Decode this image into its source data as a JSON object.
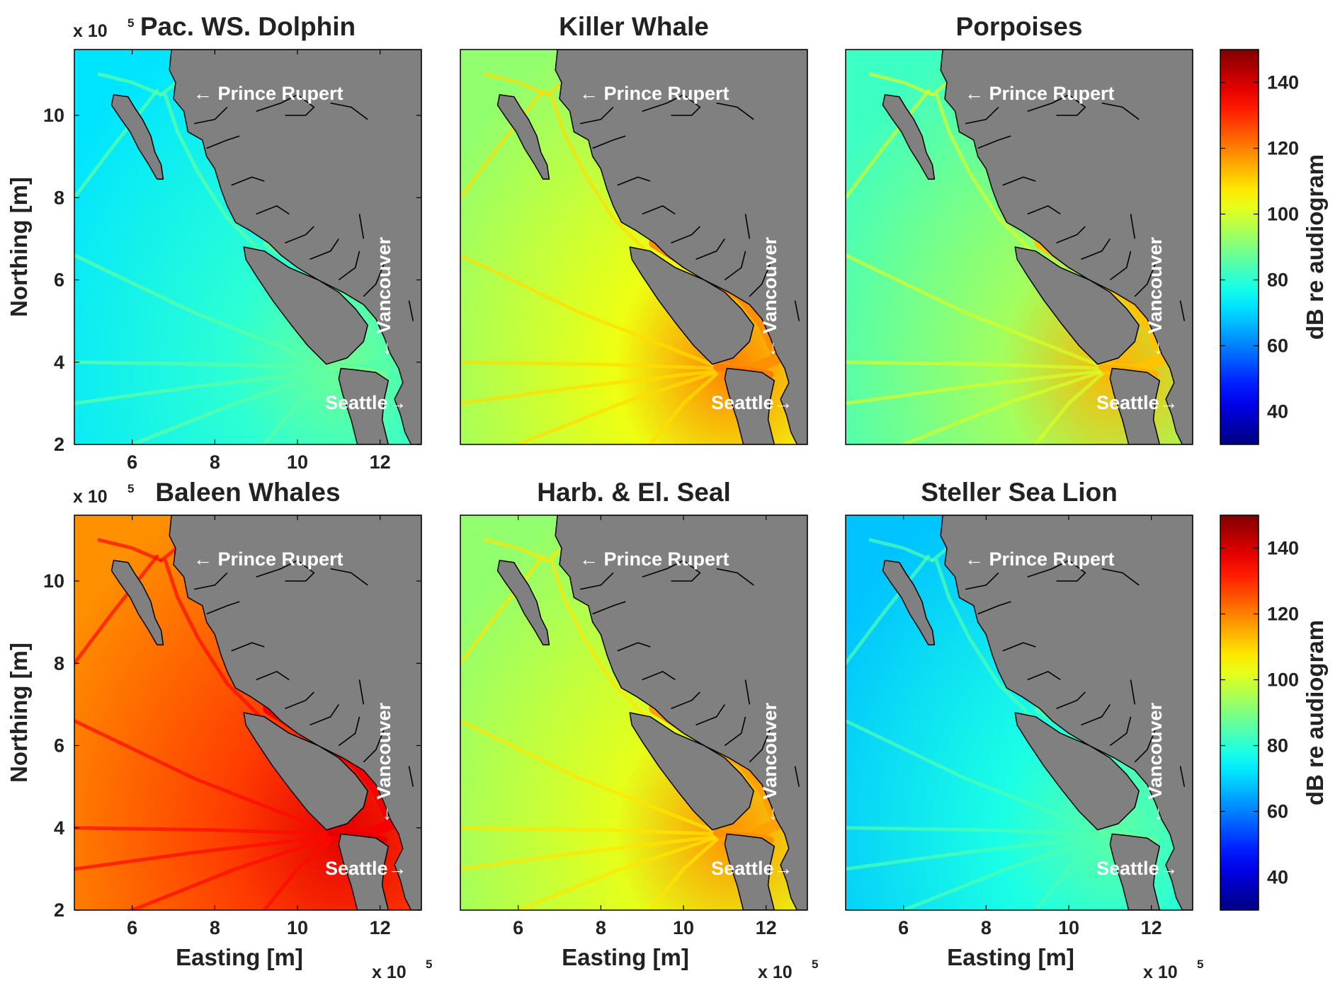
{
  "figure": {
    "colorbar": {
      "label": "dB re audiogram",
      "ticks": [
        40,
        60,
        80,
        100,
        120,
        140
      ],
      "range": [
        30,
        150
      ],
      "colormap": "jet"
    },
    "axis_labels": {
      "x": "Easting [m]",
      "y": "Northing [m]",
      "x_multiplier": "x 10",
      "y_multiplier": "x 10",
      "exponent": "5"
    },
    "annotations": {
      "prince_rupert": "← Prince Rupert",
      "vancouver": "← Vancouver",
      "seattle": "Seattle→"
    },
    "colors": {
      "land": "#808080",
      "coastline": "#000000",
      "label_text": "#ffffff"
    }
  },
  "chart_data": [
    {
      "type": "heatmap",
      "title": "Pac. WS. Dolphin",
      "xlabel": "",
      "ylabel": "Northing [m]",
      "xlim": [
        4.6,
        13.0
      ],
      "ylim": [
        2.0,
        11.6
      ],
      "xticks": [
        "6",
        "8",
        "10",
        "12"
      ],
      "xtick_values": [
        6,
        8,
        10,
        12
      ],
      "yticks": [
        "2",
        "4",
        "6",
        "8",
        "10"
      ],
      "ytick_values": [
        2,
        4,
        6,
        8,
        10
      ],
      "levels_dB": {
        "open_ocean": 72,
        "shipping_lanes": 80,
        "strait": 85,
        "juan_de_fuca": 88
      }
    },
    {
      "type": "heatmap",
      "title": "Killer Whale",
      "xlabel": "",
      "ylabel": "",
      "xlim": [
        4.6,
        13.0
      ],
      "ylim": [
        2.0,
        11.6
      ],
      "xticks": [],
      "xtick_values": [],
      "yticks": [],
      "ytick_values": [],
      "levels_dB": {
        "open_ocean": 92,
        "shipping_lanes": 103,
        "strait": 118,
        "juan_de_fuca": 120
      }
    },
    {
      "type": "heatmap",
      "title": "Porpoises",
      "xlabel": "",
      "ylabel": "",
      "xlim": [
        4.6,
        13.0
      ],
      "ylim": [
        2.0,
        11.6
      ],
      "xticks": [],
      "xtick_values": [],
      "yticks": [],
      "ytick_values": [],
      "levels_dB": {
        "open_ocean": 82,
        "shipping_lanes": 94,
        "strait": 112,
        "juan_de_fuca": 114
      }
    },
    {
      "type": "heatmap",
      "title": "Baleen Whales",
      "xlabel": "Easting [m]",
      "ylabel": "Northing [m]",
      "xlim": [
        4.6,
        13.0
      ],
      "ylim": [
        2.0,
        11.6
      ],
      "xticks": [
        "6",
        "8",
        "10",
        "12"
      ],
      "xtick_values": [
        6,
        8,
        10,
        12
      ],
      "yticks": [
        "2",
        "4",
        "6",
        "8",
        "10"
      ],
      "ytick_values": [
        2,
        4,
        6,
        8,
        10
      ],
      "levels_dB": {
        "open_ocean": 118,
        "shipping_lanes": 128,
        "strait": 136,
        "juan_de_fuca": 138
      }
    },
    {
      "type": "heatmap",
      "title": "Harb. & El. Seal",
      "xlabel": "Easting [m]",
      "ylabel": "",
      "xlim": [
        4.6,
        13.0
      ],
      "ylim": [
        2.0,
        11.6
      ],
      "xticks": [
        "6",
        "8",
        "10",
        "12"
      ],
      "xtick_values": [
        6,
        8,
        10,
        12
      ],
      "yticks": [],
      "ytick_values": [],
      "levels_dB": {
        "open_ocean": 92,
        "shipping_lanes": 102,
        "strait": 116,
        "juan_de_fuca": 118
      }
    },
    {
      "type": "heatmap",
      "title": "Steller Sea Lion",
      "xlabel": "Easting [m]",
      "ylabel": "",
      "xlim": [
        4.6,
        13.0
      ],
      "ylim": [
        2.0,
        11.6
      ],
      "xticks": [
        "6",
        "8",
        "10",
        "12"
      ],
      "xtick_values": [
        6,
        8,
        10,
        12
      ],
      "yticks": [],
      "ytick_values": [],
      "levels_dB": {
        "open_ocean": 68,
        "shipping_lanes": 78,
        "strait": 84,
        "juan_de_fuca": 86
      }
    }
  ]
}
